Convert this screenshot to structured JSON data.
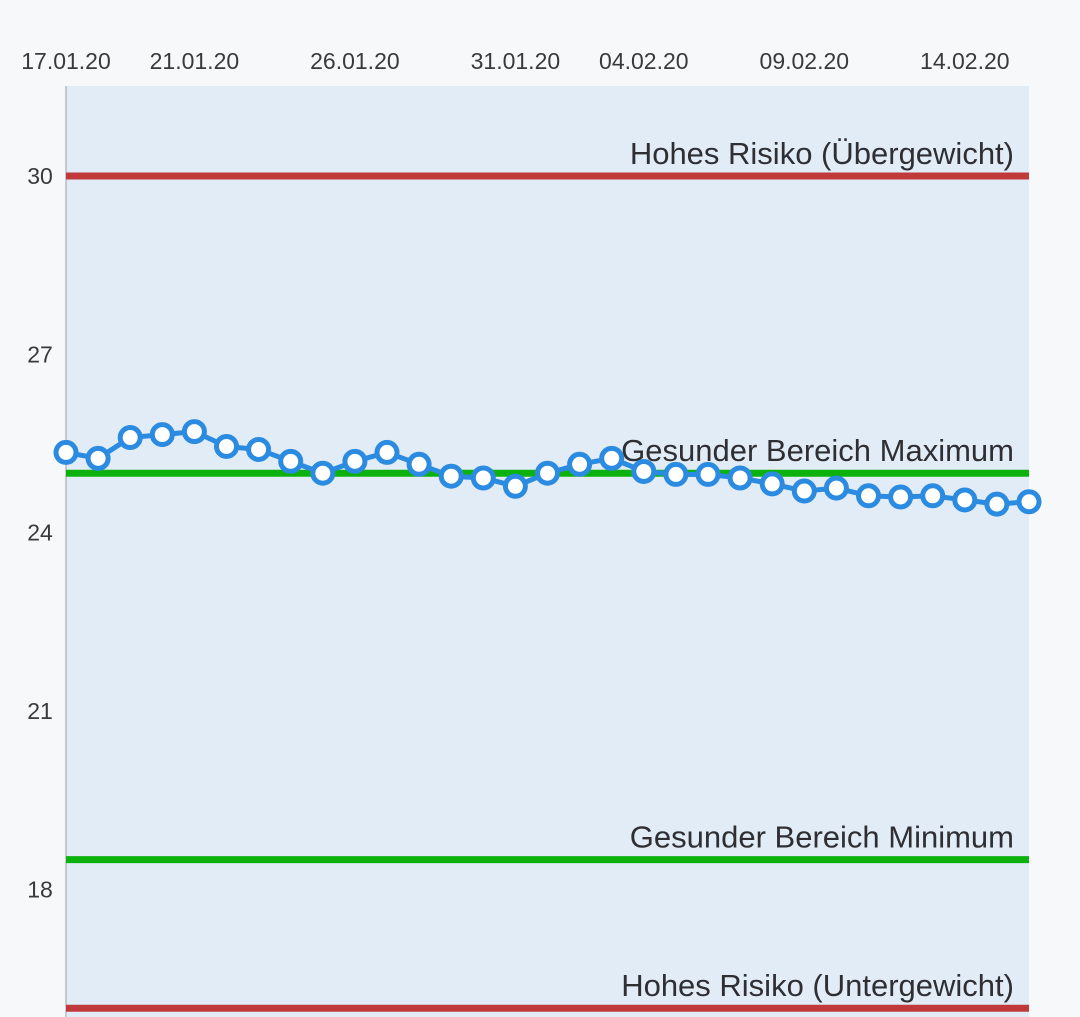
{
  "chart_data": {
    "type": "line",
    "x": [
      "17.01.20",
      "18.01.20",
      "19.01.20",
      "20.01.20",
      "21.01.20",
      "22.01.20",
      "23.01.20",
      "24.01.20",
      "25.01.20",
      "26.01.20",
      "27.01.20",
      "28.01.20",
      "29.01.20",
      "30.01.20",
      "31.01.20",
      "01.02.20",
      "02.02.20",
      "03.02.20",
      "04.02.20",
      "05.02.20",
      "06.02.20",
      "07.02.20",
      "08.02.20",
      "09.02.20",
      "10.02.20",
      "11.02.20",
      "12.02.20",
      "13.02.20",
      "14.02.20",
      "15.02.20",
      "16.02.20"
    ],
    "x_tick_labels": [
      "17.01.20",
      "21.01.20",
      "26.01.20",
      "31.01.20",
      "04.02.20",
      "09.02.20",
      "14.02.20"
    ],
    "y_tick_labels": [
      "30",
      "27",
      "24",
      "21",
      "18"
    ],
    "ylim": [
      15.8,
      31.5
    ],
    "series": [
      {
        "values": [
          25.35,
          25.25,
          25.6,
          25.65,
          25.7,
          25.45,
          25.4,
          25.2,
          25.0,
          25.2,
          25.35,
          25.15,
          24.95,
          24.92,
          24.78,
          25.0,
          25.15,
          25.25,
          25.03,
          24.98,
          24.98,
          24.92,
          24.82,
          24.7,
          24.75,
          24.62,
          24.6,
          24.62,
          24.55,
          24.48,
          24.52
        ],
        "color": "#2a8be0"
      }
    ],
    "reference_lines": [
      {
        "label": "Hohes Risiko (Übergewicht)",
        "value": 30.0,
        "color": "#c0393b"
      },
      {
        "label": "Gesunder Bereich Maximum",
        "value": 25.0,
        "color": "#0db10d"
      },
      {
        "label": "Gesunder Bereich Minimum",
        "value": 18.5,
        "color": "#0db10d"
      },
      {
        "label": "Hohes Risiko (Untergewicht)",
        "value": 16.0,
        "color": "#c0393b"
      }
    ],
    "plot_background": "#e1ecf7",
    "grid": false,
    "legend": "none"
  }
}
